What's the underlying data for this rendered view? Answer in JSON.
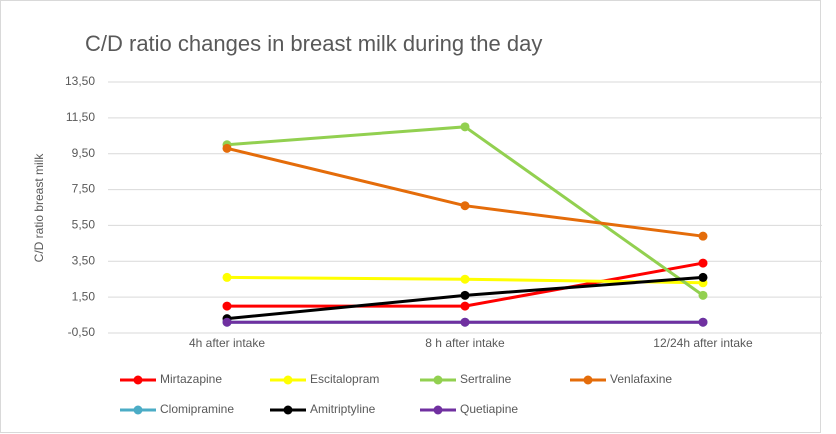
{
  "chart_data": {
    "type": "line",
    "title": "C/D ratio changes in breast milk during the day",
    "y_label": "C/D ratio breast milk",
    "categories": [
      "4h after intake",
      "8 h after intake",
      "12/24h after intake"
    ],
    "series": [
      {
        "name": "Mirtazapine",
        "color": "#ff0000",
        "values": [
          1.0,
          1.0,
          3.4
        ]
      },
      {
        "name": "Escitalopram",
        "color": "#ffff00",
        "values": [
          2.6,
          2.5,
          2.3
        ]
      },
      {
        "name": "Sertraline",
        "color": "#92d050",
        "values": [
          10.0,
          11.0,
          1.6
        ]
      },
      {
        "name": "Venlafaxine",
        "color": "#e46c0a",
        "values": [
          9.8,
          6.6,
          4.9
        ]
      },
      {
        "name": "Clomipramine",
        "color": "#4bacc6",
        "values": [
          0.1,
          0.1,
          0.1
        ]
      },
      {
        "name": "Amitriptyline",
        "color": "#000000",
        "values": [
          0.3,
          1.6,
          2.6
        ]
      },
      {
        "name": "Quetiapine",
        "color": "#7030a0",
        "values": [
          0.1,
          0.1,
          0.1
        ]
      }
    ],
    "ylim": [
      -0.5,
      13.5
    ],
    "yticks": [
      {
        "value": -0.5,
        "label": "-0,50"
      },
      {
        "value": 1.5,
        "label": "1,50"
      },
      {
        "value": 3.5,
        "label": "3,50"
      },
      {
        "value": 5.5,
        "label": "5,50"
      },
      {
        "value": 7.5,
        "label": "7,50"
      },
      {
        "value": 9.5,
        "label": "9,50"
      },
      {
        "value": 11.5,
        "label": "11,50"
      },
      {
        "value": 13.5,
        "label": "13,50"
      }
    ],
    "grid": true,
    "legend": "bottom"
  }
}
